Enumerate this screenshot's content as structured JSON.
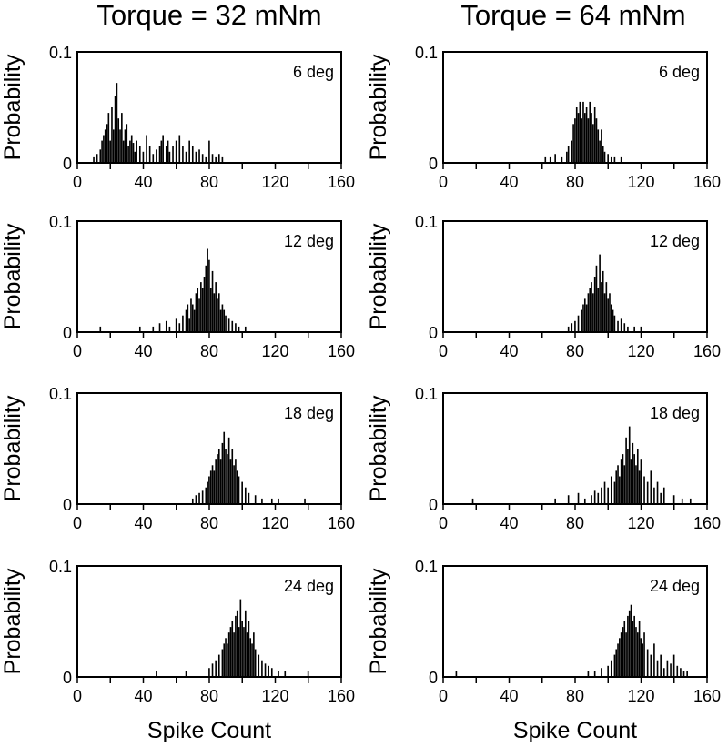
{
  "column_titles": [
    "Torque = 32 mNm",
    "Torque = 64 mNm"
  ],
  "chart_data": [
    {
      "type": "bar",
      "panel": "Torque = 32 mNm / 6 deg",
      "annotation": "6 deg",
      "xlabel": "",
      "ylabel": "Probability",
      "xlim": [
        0,
        160
      ],
      "ylim": [
        0,
        0.1
      ],
      "xticks": [
        0,
        40,
        80,
        120,
        160
      ],
      "yticks": [
        0,
        0.1
      ],
      "x": [
        10,
        12,
        14,
        15,
        16,
        17,
        18,
        19,
        20,
        21,
        22,
        23,
        24,
        25,
        26,
        27,
        28,
        29,
        30,
        31,
        32,
        33,
        34,
        35,
        36,
        38,
        40,
        42,
        44,
        46,
        48,
        50,
        51,
        52,
        54,
        55,
        56,
        58,
        60,
        62,
        64,
        66,
        68,
        70,
        72,
        74,
        76,
        78,
        80,
        82,
        84,
        86,
        88
      ],
      "values": [
        0.005,
        0.008,
        0.012,
        0.02,
        0.025,
        0.03,
        0.035,
        0.045,
        0.02,
        0.05,
        0.03,
        0.06,
        0.072,
        0.04,
        0.03,
        0.045,
        0.02,
        0.03,
        0.035,
        0.015,
        0.02,
        0.025,
        0.018,
        0.01,
        0.02,
        0.015,
        0.01,
        0.025,
        0.015,
        0.008,
        0.012,
        0.015,
        0.02,
        0.025,
        0.015,
        0.02,
        0.01,
        0.015,
        0.02,
        0.025,
        0.015,
        0.01,
        0.02,
        0.015,
        0.01,
        0.012,
        0.008,
        0.005,
        0.02,
        0.008,
        0.005,
        0.008,
        0.005
      ]
    },
    {
      "type": "bar",
      "panel": "Torque = 64 mNm / 6 deg",
      "annotation": "6 deg",
      "xlabel": "",
      "ylabel": "Probability",
      "xlim": [
        0,
        160
      ],
      "ylim": [
        0,
        0.1
      ],
      "xticks": [
        0,
        40,
        80,
        120,
        160
      ],
      "yticks": [
        0,
        0.1
      ],
      "x": [
        62,
        65,
        68,
        72,
        75,
        76,
        78,
        79,
        80,
        81,
        82,
        83,
        84,
        85,
        86,
        87,
        88,
        89,
        90,
        91,
        92,
        93,
        94,
        95,
        96,
        97,
        98,
        100,
        102,
        104,
        108
      ],
      "values": [
        0.005,
        0.005,
        0.008,
        0.005,
        0.01,
        0.015,
        0.02,
        0.035,
        0.04,
        0.05,
        0.045,
        0.055,
        0.04,
        0.055,
        0.045,
        0.05,
        0.04,
        0.055,
        0.045,
        0.035,
        0.05,
        0.04,
        0.03,
        0.02,
        0.03,
        0.015,
        0.01,
        0.008,
        0.005,
        0.005,
        0.005
      ]
    },
    {
      "type": "bar",
      "panel": "Torque = 32 mNm / 12 deg",
      "annotation": "12 deg",
      "xlabel": "",
      "ylabel": "Probability",
      "xlim": [
        0,
        160
      ],
      "ylim": [
        0,
        0.1
      ],
      "xticks": [
        0,
        40,
        80,
        120,
        160
      ],
      "yticks": [
        0,
        0.1
      ],
      "x": [
        14,
        38,
        46,
        50,
        54,
        56,
        60,
        62,
        64,
        66,
        67,
        68,
        69,
        70,
        71,
        72,
        73,
        74,
        75,
        76,
        77,
        78,
        79,
        80,
        81,
        82,
        83,
        84,
        85,
        86,
        87,
        88,
        89,
        90,
        92,
        94,
        96,
        98,
        102
      ],
      "values": [
        0.005,
        0.005,
        0.005,
        0.008,
        0.01,
        0.005,
        0.012,
        0.008,
        0.015,
        0.02,
        0.025,
        0.012,
        0.03,
        0.025,
        0.02,
        0.035,
        0.04,
        0.03,
        0.045,
        0.04,
        0.05,
        0.06,
        0.075,
        0.065,
        0.04,
        0.055,
        0.035,
        0.045,
        0.03,
        0.035,
        0.02,
        0.025,
        0.02,
        0.015,
        0.012,
        0.01,
        0.008,
        0.005,
        0.005
      ]
    },
    {
      "type": "bar",
      "panel": "Torque = 64 mNm / 12 deg",
      "annotation": "12 deg",
      "xlabel": "",
      "ylabel": "Probability",
      "xlim": [
        0,
        160
      ],
      "ylim": [
        0,
        0.1
      ],
      "xticks": [
        0,
        40,
        80,
        120,
        160
      ],
      "yticks": [
        0,
        0.1
      ],
      "x": [
        76,
        78,
        80,
        82,
        84,
        85,
        86,
        87,
        88,
        89,
        90,
        91,
        92,
        93,
        94,
        95,
        96,
        97,
        98,
        99,
        100,
        101,
        102,
        103,
        104,
        106,
        108,
        110,
        112,
        116,
        120
      ],
      "values": [
        0.005,
        0.008,
        0.01,
        0.015,
        0.02,
        0.025,
        0.03,
        0.025,
        0.035,
        0.04,
        0.045,
        0.035,
        0.05,
        0.06,
        0.04,
        0.07,
        0.045,
        0.055,
        0.035,
        0.045,
        0.03,
        0.035,
        0.025,
        0.02,
        0.015,
        0.01,
        0.012,
        0.008,
        0.005,
        0.005,
        0.005
      ]
    },
    {
      "type": "bar",
      "panel": "Torque = 32 mNm / 18 deg",
      "annotation": "18 deg",
      "xlabel": "",
      "ylabel": "Probability",
      "xlim": [
        0,
        160
      ],
      "ylim": [
        0,
        0.1
      ],
      "xticks": [
        0,
        40,
        80,
        120,
        160
      ],
      "yticks": [
        0,
        0.1
      ],
      "x": [
        70,
        72,
        74,
        76,
        78,
        79,
        80,
        81,
        82,
        83,
        84,
        85,
        86,
        87,
        88,
        89,
        90,
        91,
        92,
        93,
        94,
        95,
        96,
        97,
        98,
        100,
        102,
        104,
        108,
        112,
        118,
        122,
        138
      ],
      "values": [
        0.005,
        0.008,
        0.01,
        0.012,
        0.015,
        0.02,
        0.025,
        0.03,
        0.035,
        0.03,
        0.04,
        0.045,
        0.05,
        0.04,
        0.055,
        0.065,
        0.05,
        0.045,
        0.06,
        0.04,
        0.05,
        0.035,
        0.04,
        0.03,
        0.025,
        0.02,
        0.015,
        0.01,
        0.008,
        0.005,
        0.005,
        0.005,
        0.005
      ]
    },
    {
      "type": "bar",
      "panel": "Torque = 64 mNm / 18 deg",
      "annotation": "18 deg",
      "xlabel": "",
      "ylabel": "Probability",
      "xlim": [
        0,
        160
      ],
      "ylim": [
        0,
        0.1
      ],
      "xticks": [
        0,
        40,
        80,
        120,
        160
      ],
      "yticks": [
        0,
        0.1
      ],
      "x": [
        18,
        68,
        76,
        82,
        86,
        90,
        92,
        94,
        96,
        98,
        100,
        102,
        104,
        105,
        106,
        107,
        108,
        109,
        110,
        111,
        112,
        113,
        114,
        115,
        116,
        117,
        118,
        119,
        120,
        122,
        124,
        126,
        128,
        130,
        132,
        134,
        140,
        145,
        150
      ],
      "values": [
        0.005,
        0.005,
        0.008,
        0.01,
        0.005,
        0.008,
        0.012,
        0.01,
        0.015,
        0.02,
        0.015,
        0.025,
        0.02,
        0.03,
        0.035,
        0.025,
        0.04,
        0.045,
        0.035,
        0.06,
        0.05,
        0.07,
        0.04,
        0.055,
        0.045,
        0.035,
        0.05,
        0.03,
        0.04,
        0.025,
        0.02,
        0.03,
        0.015,
        0.02,
        0.01,
        0.015,
        0.008,
        0.005,
        0.005
      ]
    },
    {
      "type": "bar",
      "panel": "Torque = 32 mNm / 24 deg",
      "annotation": "24 deg",
      "xlabel": "Spike Count",
      "ylabel": "Probability",
      "xlim": [
        0,
        160
      ],
      "ylim": [
        0,
        0.1
      ],
      "xticks": [
        0,
        40,
        80,
        120,
        160
      ],
      "yticks": [
        0,
        0.1
      ],
      "x": [
        48,
        66,
        80,
        82,
        84,
        86,
        88,
        89,
        90,
        91,
        92,
        93,
        94,
        95,
        96,
        97,
        98,
        99,
        100,
        101,
        102,
        103,
        104,
        105,
        106,
        107,
        108,
        110,
        112,
        114,
        116,
        118,
        122,
        126,
        140
      ],
      "values": [
        0.005,
        0.005,
        0.008,
        0.012,
        0.015,
        0.02,
        0.025,
        0.03,
        0.035,
        0.03,
        0.04,
        0.045,
        0.05,
        0.04,
        0.055,
        0.06,
        0.045,
        0.07,
        0.05,
        0.045,
        0.06,
        0.04,
        0.05,
        0.035,
        0.03,
        0.04,
        0.025,
        0.02,
        0.015,
        0.012,
        0.01,
        0.008,
        0.005,
        0.005,
        0.005
      ]
    },
    {
      "type": "bar",
      "panel": "Torque = 64 mNm / 24 deg",
      "annotation": "24 deg",
      "xlabel": "Spike Count",
      "ylabel": "Probability",
      "xlim": [
        0,
        160
      ],
      "ylim": [
        0,
        0.1
      ],
      "xticks": [
        0,
        40,
        80,
        120,
        160
      ],
      "yticks": [
        0,
        0.1
      ],
      "x": [
        8,
        88,
        92,
        96,
        100,
        102,
        104,
        105,
        106,
        107,
        108,
        109,
        110,
        111,
        112,
        113,
        114,
        115,
        116,
        117,
        118,
        119,
        120,
        121,
        122,
        124,
        126,
        128,
        130,
        132,
        134,
        136,
        138,
        140,
        142,
        144,
        146,
        148
      ],
      "values": [
        0.005,
        0.005,
        0.005,
        0.008,
        0.01,
        0.015,
        0.02,
        0.025,
        0.03,
        0.035,
        0.04,
        0.045,
        0.05,
        0.04,
        0.055,
        0.06,
        0.065,
        0.05,
        0.055,
        0.045,
        0.04,
        0.05,
        0.035,
        0.03,
        0.04,
        0.025,
        0.02,
        0.03,
        0.015,
        0.02,
        0.008,
        0.015,
        0.012,
        0.02,
        0.01,
        0.008,
        0.005,
        0.005
      ]
    }
  ]
}
